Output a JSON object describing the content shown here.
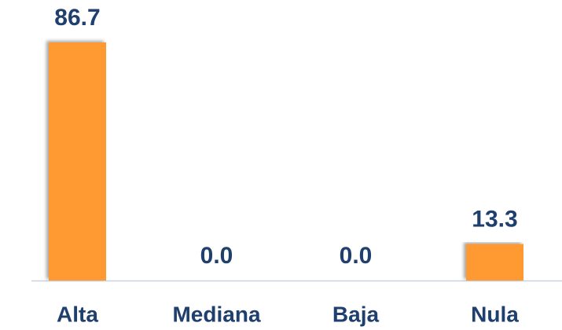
{
  "chart_data": {
    "type": "bar",
    "categories": [
      "Alta",
      "Mediana",
      "Baja",
      "Nula"
    ],
    "values": [
      86.7,
      0,
      0,
      13.3
    ],
    "value_labels": [
      "86.7",
      "0.0",
      "0.0",
      "13.3"
    ],
    "color": "#ff9933"
  }
}
